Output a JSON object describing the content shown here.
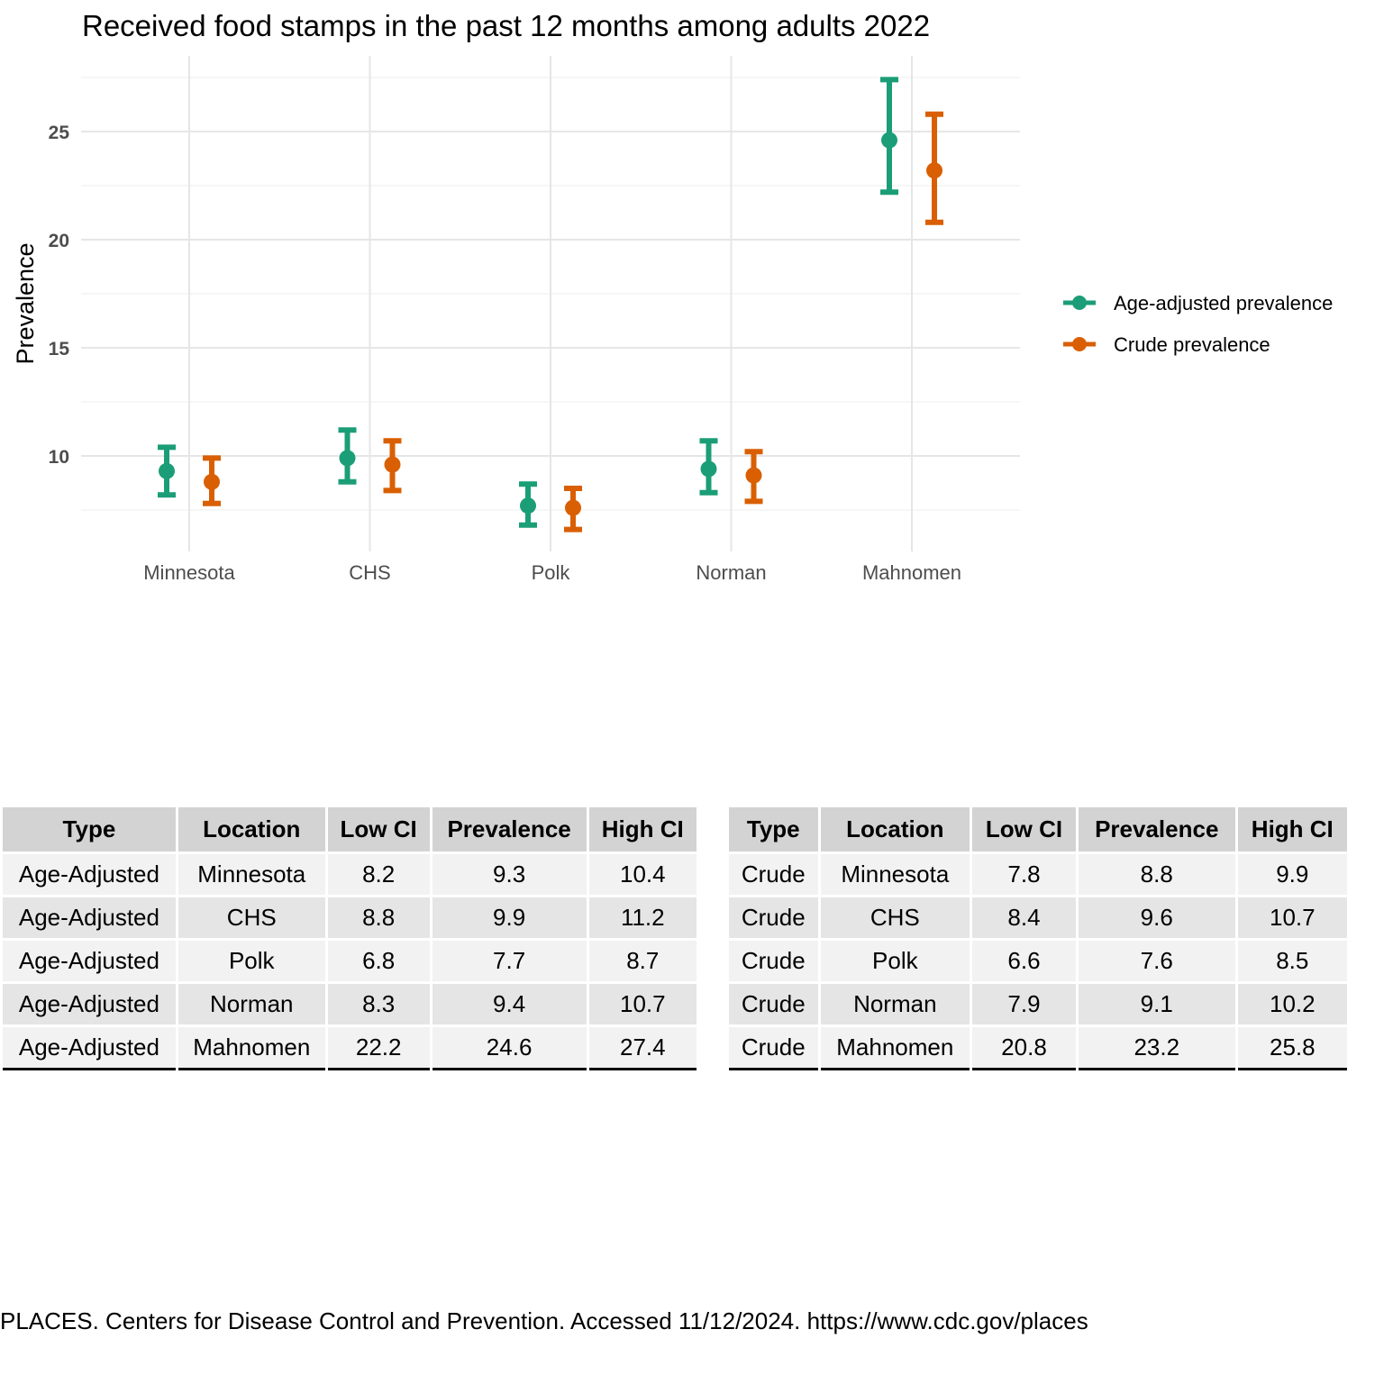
{
  "chart_data": {
    "type": "errorbar",
    "title": "Received food stamps in the past 12 months among adults 2022",
    "xlabel": "",
    "ylabel": "Prevalence",
    "categories": [
      "Minnesota",
      "CHS",
      "Polk",
      "Norman",
      "Mahnomen"
    ],
    "yticks": [
      "10",
      "15",
      "20",
      "25"
    ],
    "ylim": [
      5.6,
      28.4
    ],
    "grid": true,
    "legend_position": "right",
    "series": [
      {
        "name": "Age-adjusted prevalence",
        "color": "#1b9e77",
        "values": [
          9.3,
          9.9,
          7.7,
          9.4,
          24.6
        ],
        "low": [
          8.2,
          8.8,
          6.8,
          8.3,
          22.2
        ],
        "high": [
          10.4,
          11.2,
          8.7,
          10.7,
          27.4
        ]
      },
      {
        "name": "Crude prevalence",
        "color": "#d95f02",
        "values": [
          8.8,
          9.6,
          7.6,
          9.1,
          23.2
        ],
        "low": [
          7.8,
          8.4,
          6.6,
          7.9,
          20.8
        ],
        "high": [
          9.9,
          10.7,
          8.5,
          10.2,
          25.8
        ]
      }
    ]
  },
  "tables": {
    "age_adjusted": {
      "headers": [
        "Type",
        "Location",
        "Low CI",
        "Prevalence",
        "High CI"
      ],
      "rows": [
        [
          "Age-Adjusted",
          "Minnesota",
          "8.2",
          "9.3",
          "10.4"
        ],
        [
          "Age-Adjusted",
          "CHS",
          "8.8",
          "9.9",
          "11.2"
        ],
        [
          "Age-Adjusted",
          "Polk",
          "6.8",
          "7.7",
          "8.7"
        ],
        [
          "Age-Adjusted",
          "Norman",
          "8.3",
          "9.4",
          "10.7"
        ],
        [
          "Age-Adjusted",
          "Mahnomen",
          "22.2",
          "24.6",
          "27.4"
        ]
      ]
    },
    "crude": {
      "headers": [
        "Type",
        "Location",
        "Low CI",
        "Prevalence",
        "High CI"
      ],
      "rows": [
        [
          "Crude",
          "Minnesota",
          "7.8",
          "8.8",
          "9.9"
        ],
        [
          "Crude",
          "CHS",
          "8.4",
          "9.6",
          "10.7"
        ],
        [
          "Crude",
          "Polk",
          "6.6",
          "7.6",
          "8.5"
        ],
        [
          "Crude",
          "Norman",
          "7.9",
          "9.1",
          "10.2"
        ],
        [
          "Crude",
          "Mahnomen",
          "20.8",
          "23.2",
          "25.8"
        ]
      ]
    }
  },
  "source_note": "PLACES. Centers for Disease Control and Prevention. Accessed 11/12/2024. https://www.cdc.gov/places"
}
